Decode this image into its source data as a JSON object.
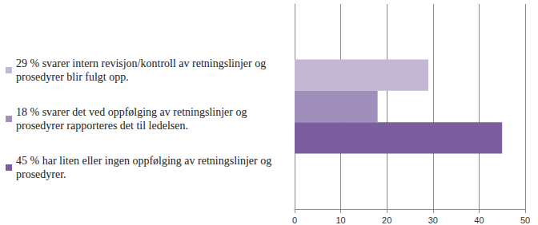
{
  "chart_data": {
    "type": "bar",
    "orientation": "horizontal",
    "categories": [
      null
    ],
    "series": [
      {
        "name": "29 % svarer intern revisjon/kontroll av retningslinjer og prosedyrer blir fulgt opp.",
        "color": "#c3b8d4",
        "values": [
          29
        ]
      },
      {
        "name": "18 % svarer det ved oppfølging av retningslinjer og prosedyrer rapporteres det til ledelsen.",
        "color": "#a08fba",
        "values": [
          18
        ]
      },
      {
        "name": "45 % har liten eller ingen oppfølging av retningslinjer og prosedyrer.",
        "color": "#7b5e9e",
        "values": [
          45
        ]
      }
    ],
    "xlim": [
      0,
      50
    ],
    "xticks": [
      0,
      10,
      20,
      30,
      40,
      50
    ],
    "grid": true,
    "legend": "left",
    "tick_labels": "x"
  }
}
